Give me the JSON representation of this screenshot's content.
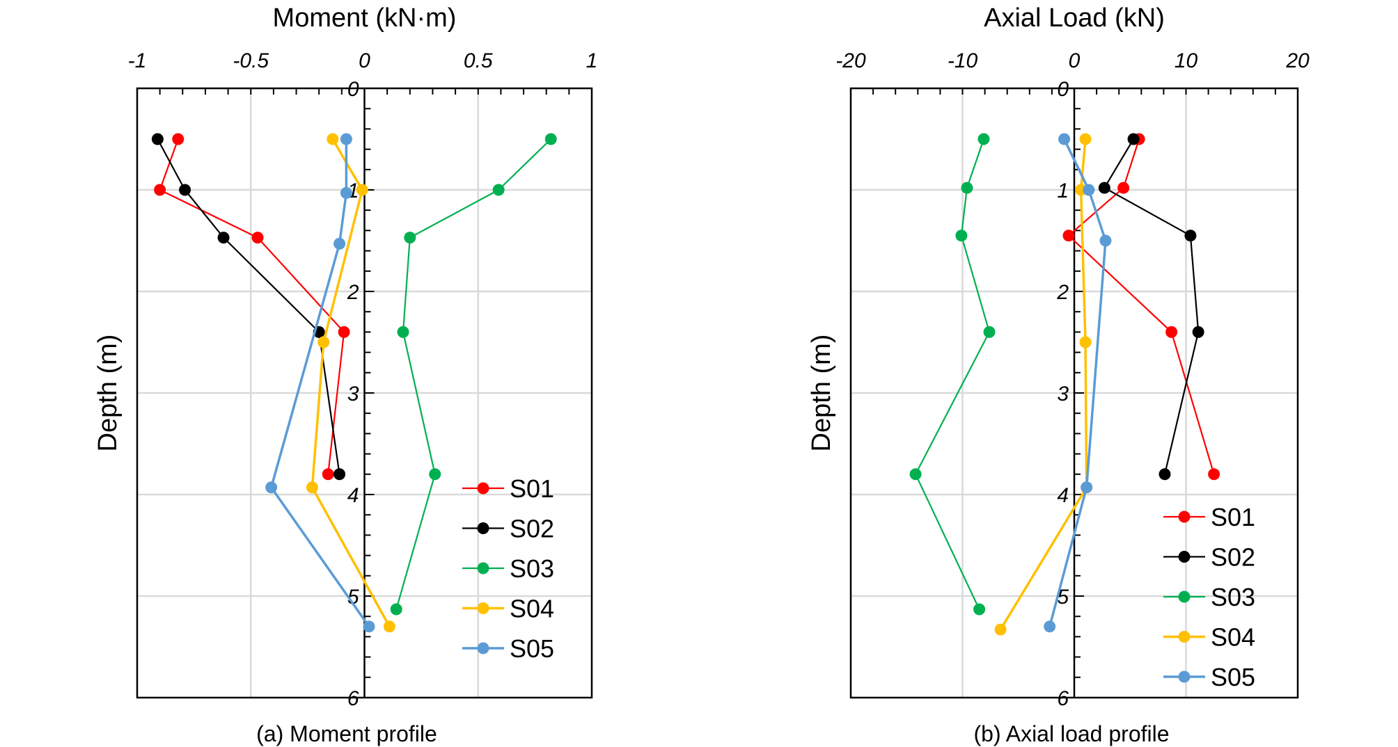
{
  "chart_data": [
    {
      "type": "line",
      "caption": "(a) Moment profile",
      "xlabel": "Moment (kN·m)",
      "ylabel": "Depth (m)",
      "xlim": [
        -1,
        1
      ],
      "ylim": [
        0,
        6
      ],
      "y_inverted": true,
      "x_ticks": [
        -1,
        -0.5,
        0,
        0.5,
        1
      ],
      "x_tick_labels": [
        "-1",
        "-0.5",
        "0",
        "0.5",
        "1"
      ],
      "y_ticks": [
        0,
        1,
        2,
        3,
        4,
        5,
        6
      ],
      "y_tick_labels": [
        "0",
        "1",
        "2",
        "3",
        "4",
        "5",
        "6"
      ],
      "grid": true,
      "legend_position": "bottom-right",
      "series": [
        {
          "name": "S01",
          "color": "#ff0000",
          "x": [
            -0.82,
            -0.9,
            -0.47,
            -0.09,
            -0.16
          ],
          "y": [
            0.5,
            1.0,
            1.47,
            2.4,
            3.8
          ]
        },
        {
          "name": "S02",
          "color": "#000000",
          "x": [
            -0.91,
            -0.79,
            -0.62,
            -0.2,
            -0.11
          ],
          "y": [
            0.5,
            1.0,
            1.47,
            2.4,
            3.8
          ]
        },
        {
          "name": "S03",
          "color": "#00b050",
          "x": [
            0.82,
            0.59,
            0.2,
            0.17,
            0.31,
            0.14
          ],
          "y": [
            0.5,
            1.0,
            1.47,
            2.4,
            3.8,
            5.13
          ]
        },
        {
          "name": "S04",
          "color": "#ffc000",
          "x": [
            -0.14,
            -0.01,
            -0.18,
            -0.23,
            0.11
          ],
          "y": [
            0.5,
            1.0,
            2.5,
            3.93,
            5.3
          ]
        },
        {
          "name": "S05",
          "color": "#5b9bd5",
          "x": [
            -0.08,
            -0.08,
            -0.11,
            -0.41,
            0.02
          ],
          "y": [
            0.5,
            1.03,
            1.53,
            3.93,
            5.3
          ]
        }
      ]
    },
    {
      "type": "line",
      "caption": "(b) Axial load profile",
      "xlabel": "Axial Load (kN)",
      "ylabel": "Depth (m)",
      "xlim": [
        -20,
        20
      ],
      "ylim": [
        0,
        6
      ],
      "y_inverted": true,
      "x_ticks": [
        -20,
        -10,
        0,
        10,
        20
      ],
      "x_tick_labels": [
        "-20",
        "-10",
        "0",
        "10",
        "20"
      ],
      "y_ticks": [
        0,
        1,
        2,
        3,
        4,
        5,
        6
      ],
      "y_tick_labels": [
        "0",
        "1",
        "2",
        "3",
        "4",
        "5",
        "6"
      ],
      "grid": true,
      "legend_position": "bottom-right",
      "series": [
        {
          "name": "S01",
          "color": "#ff0000",
          "x": [
            5.8,
            4.4,
            -0.5,
            8.7,
            12.5
          ],
          "y": [
            0.5,
            0.98,
            1.45,
            2.4,
            3.8
          ]
        },
        {
          "name": "S02",
          "color": "#000000",
          "x": [
            5.3,
            2.7,
            10.4,
            11.1,
            8.1
          ],
          "y": [
            0.5,
            0.98,
            1.45,
            2.4,
            3.8
          ]
        },
        {
          "name": "S03",
          "color": "#00b050",
          "x": [
            -8.1,
            -9.6,
            -10.1,
            -7.6,
            -14.2,
            -8.5
          ],
          "y": [
            0.5,
            0.98,
            1.45,
            2.4,
            3.8,
            5.13
          ]
        },
        {
          "name": "S04",
          "color": "#ffc000",
          "x": [
            1.0,
            0.6,
            1.0,
            1.1,
            -6.6
          ],
          "y": [
            0.5,
            1.0,
            2.5,
            3.93,
            5.33
          ]
        },
        {
          "name": "S05",
          "color": "#5b9bd5",
          "x": [
            -0.9,
            1.3,
            2.8,
            1.1,
            -2.2
          ],
          "y": [
            0.5,
            1.0,
            1.5,
            3.93,
            5.3
          ]
        }
      ]
    }
  ]
}
